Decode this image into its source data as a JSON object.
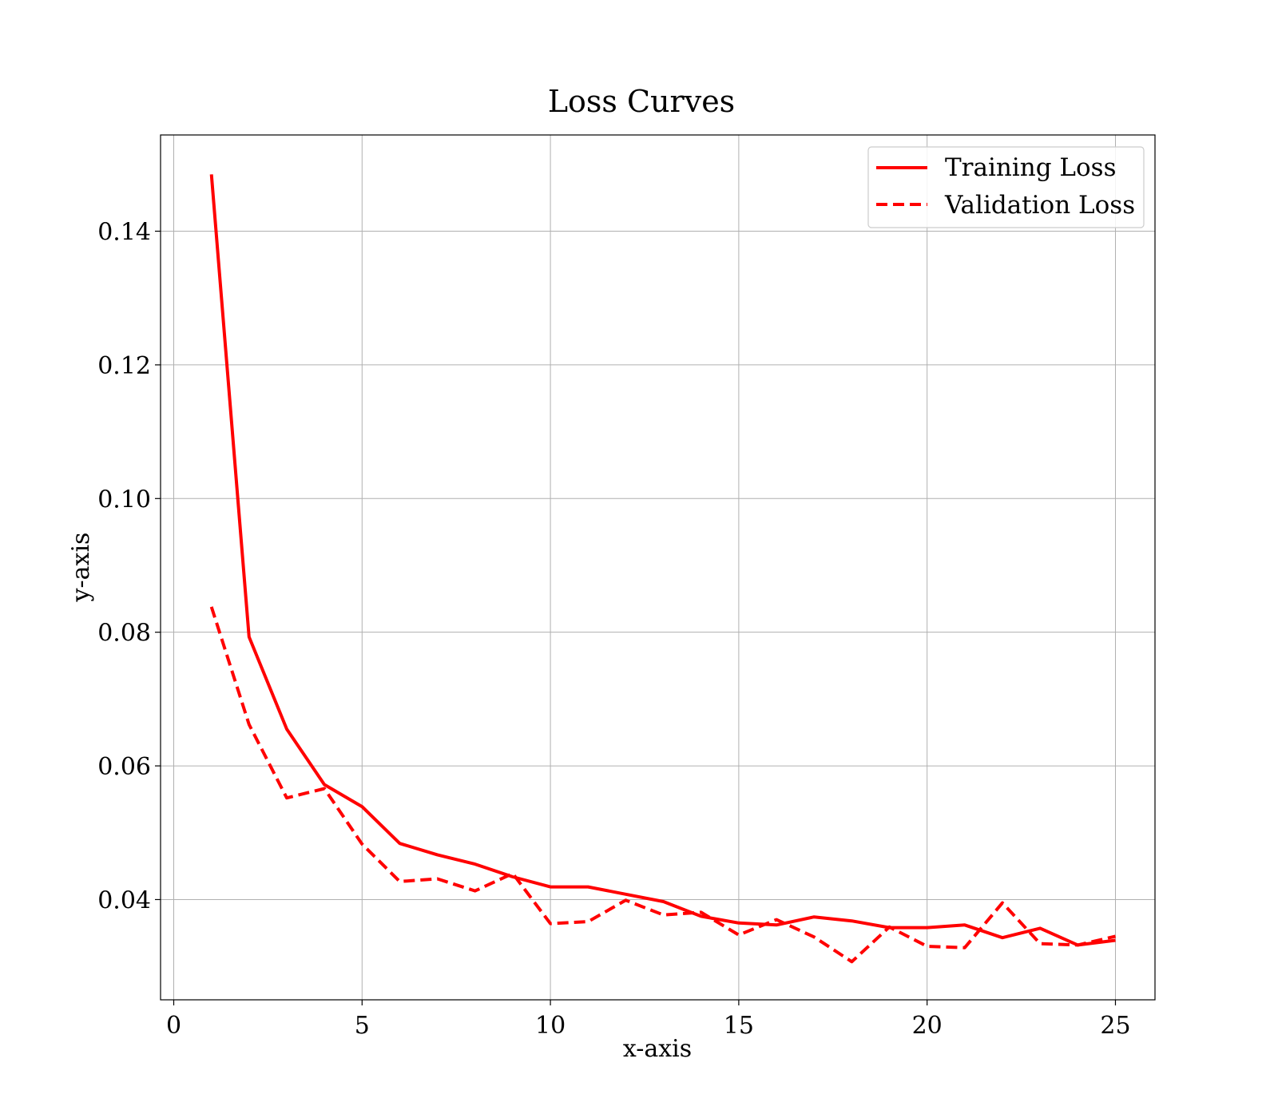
{
  "chart_data": {
    "type": "line",
    "title": "Loss Curves",
    "xlabel": "x-axis",
    "ylabel": "y-axis",
    "xlim": [
      -0.35,
      26.05
    ],
    "ylim": [
      0.025,
      0.1544
    ],
    "xticks": [
      0,
      5,
      10,
      15,
      20,
      25
    ],
    "yticks": [
      0.04,
      0.06,
      0.08,
      0.1,
      0.12,
      0.14
    ],
    "ytick_labels": [
      "0.04",
      "0.06",
      "0.08",
      "0.10",
      "0.12",
      "0.14"
    ],
    "grid": true,
    "legend_position": "top-right",
    "color": "#ff0000",
    "x": [
      1,
      2,
      3,
      4,
      5,
      6,
      7,
      8,
      9,
      10,
      11,
      12,
      13,
      14,
      15,
      16,
      17,
      18,
      19,
      20,
      21,
      22,
      23,
      24,
      25
    ],
    "series": [
      {
        "name": "Training Loss",
        "style": "solid",
        "values": [
          0.1485,
          0.0793,
          0.0655,
          0.0572,
          0.0539,
          0.0484,
          0.0467,
          0.0453,
          0.0434,
          0.0419,
          0.0419,
          0.0408,
          0.0397,
          0.0375,
          0.0365,
          0.0362,
          0.0374,
          0.0368,
          0.0358,
          0.0358,
          0.0362,
          0.0343,
          0.0357,
          0.0332,
          0.0339
        ]
      },
      {
        "name": "Validation Loss",
        "style": "dashed",
        "values": [
          0.0838,
          0.0662,
          0.0552,
          0.0566,
          0.0483,
          0.0427,
          0.0431,
          0.0413,
          0.0439,
          0.0364,
          0.0367,
          0.0399,
          0.0377,
          0.0381,
          0.0347,
          0.037,
          0.0344,
          0.0307,
          0.0359,
          0.033,
          0.0328,
          0.0395,
          0.0334,
          0.0332,
          0.0345
        ]
      }
    ]
  }
}
